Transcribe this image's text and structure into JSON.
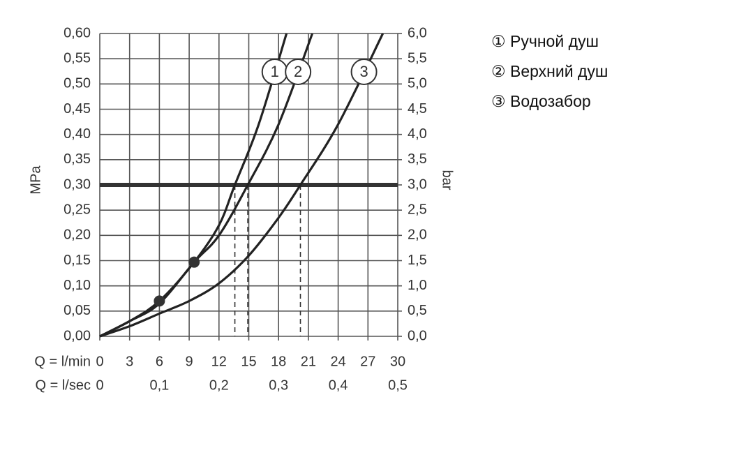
{
  "chart_data": {
    "type": "line",
    "xlabel": "Q = l/min",
    "x2label": "Q = l/sec",
    "ylabel": "MPa",
    "y2label": "bar",
    "xlim": [
      0,
      30
    ],
    "xticks": [
      0,
      3,
      6,
      9,
      12,
      15,
      18,
      21,
      24,
      27,
      30
    ],
    "x2lim": [
      0,
      0.5
    ],
    "x2ticks": [
      0,
      {
        "value": 0.1,
        "label": "0,1"
      },
      {
        "value": 0.2,
        "label": "0,2"
      },
      {
        "value": 0.3,
        "label": "0,3"
      },
      {
        "value": 0.4,
        "label": "0,4"
      },
      {
        "value": 0.5,
        "label": "0,5"
      }
    ],
    "ylim": [
      0,
      0.6
    ],
    "yticks": [
      {
        "value": 0,
        "label": "0,00"
      },
      {
        "value": 0.05,
        "label": "0,05"
      },
      {
        "value": 0.1,
        "label": "0,10"
      },
      {
        "value": 0.15,
        "label": "0,15"
      },
      {
        "value": 0.2,
        "label": "0,20"
      },
      {
        "value": 0.25,
        "label": "0,25"
      },
      {
        "value": 0.3,
        "label": "0,30"
      },
      {
        "value": 0.35,
        "label": "0,35"
      },
      {
        "value": 0.4,
        "label": "0,40"
      },
      {
        "value": 0.45,
        "label": "0,45"
      },
      {
        "value": 0.5,
        "label": "0,50"
      },
      {
        "value": 0.55,
        "label": "0,55"
      },
      {
        "value": 0.6,
        "label": "0,60"
      }
    ],
    "y2lim": [
      0,
      6
    ],
    "y2ticks": [
      {
        "value": 0,
        "label": "0,0"
      },
      {
        "value": 0.5,
        "label": "0,5"
      },
      {
        "value": 1,
        "label": "1,0"
      },
      {
        "value": 1.5,
        "label": "1,5"
      },
      {
        "value": 2,
        "label": "2,0"
      },
      {
        "value": 2.5,
        "label": "2,5"
      },
      {
        "value": 3,
        "label": "3,0"
      },
      {
        "value": 3.5,
        "label": "3,5"
      },
      {
        "value": 4,
        "label": "4,0"
      },
      {
        "value": 4.5,
        "label": "4,5"
      },
      {
        "value": 5,
        "label": "5,0"
      },
      {
        "value": 5.5,
        "label": "5,5"
      },
      {
        "value": 6,
        "label": "6,0"
      }
    ],
    "grid": true,
    "reference_y": 0.3,
    "reference_x": [
      13.6,
      14.9,
      20.2
    ],
    "markers": [
      {
        "x": 6,
        "y": 0.07
      },
      {
        "x": 9.5,
        "y": 0.147
      }
    ],
    "series": [
      {
        "name": "① Ручной душ",
        "curve_label": "1",
        "color": "#222222",
        "x": [
          0,
          3,
          6,
          9.5,
          12,
          13.6,
          16,
          18.8
        ],
        "values": [
          0,
          0.03,
          0.07,
          0.147,
          0.22,
          0.3,
          0.42,
          0.6
        ]
      },
      {
        "name": "② Верхний душ",
        "curve_label": "2",
        "color": "#222222",
        "x": [
          0,
          3,
          6,
          9.5,
          12,
          14.9,
          18,
          21.4
        ],
        "values": [
          0,
          0.03,
          0.065,
          0.147,
          0.2,
          0.3,
          0.42,
          0.6
        ]
      },
      {
        "name": "③ Водозабор",
        "curve_label": "3",
        "color": "#222222",
        "x": [
          0,
          3,
          6,
          9,
          12,
          15,
          18,
          20.2,
          24,
          28.5
        ],
        "values": [
          0,
          0.02,
          0.045,
          0.07,
          0.105,
          0.16,
          0.235,
          0.3,
          0.42,
          0.6
        ]
      }
    ],
    "legend": "right"
  }
}
